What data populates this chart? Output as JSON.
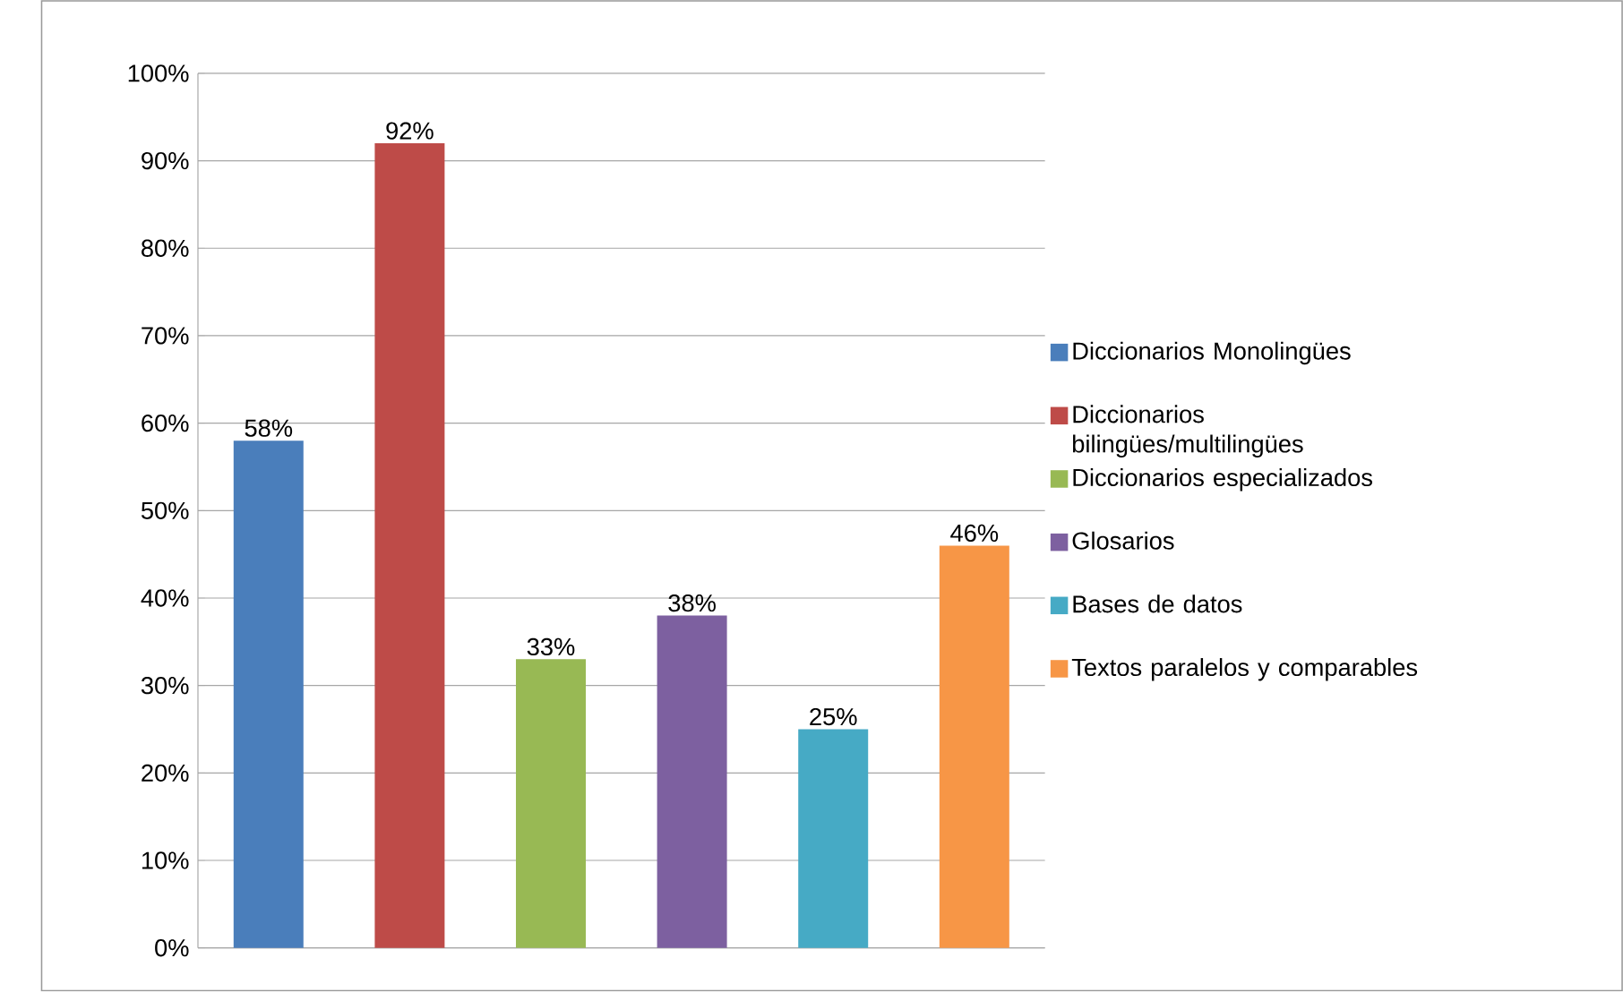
{
  "chart_data": {
    "type": "bar",
    "categories": [
      null,
      null,
      null,
      null,
      null,
      null
    ],
    "series": [
      {
        "name": "Diccionarios Monolingües",
        "color": "#4a7ebb",
        "values": [
          58,
          null,
          null,
          null,
          null,
          null
        ],
        "value_labels": [
          "58%",
          null,
          null,
          null,
          null,
          null
        ]
      },
      {
        "name": "Diccionarios bilingües/multilingües",
        "color": "#be4b48",
        "values": [
          null,
          92,
          null,
          null,
          null,
          null
        ],
        "value_labels": [
          null,
          "92%",
          null,
          null,
          null,
          null
        ]
      },
      {
        "name": "Diccionarios especializados",
        "color": "#98b954",
        "values": [
          null,
          null,
          33,
          null,
          null,
          null
        ],
        "value_labels": [
          null,
          null,
          "33%",
          null,
          null,
          null
        ]
      },
      {
        "name": "Glosarios",
        "color": "#7d60a0",
        "values": [
          null,
          null,
          null,
          38,
          null,
          null
        ],
        "value_labels": [
          null,
          null,
          null,
          "38%",
          null,
          null
        ]
      },
      {
        "name": "Bases de datos",
        "color": "#46aac5",
        "values": [
          null,
          null,
          null,
          null,
          25,
          null
        ],
        "value_labels": [
          null,
          null,
          null,
          null,
          "25%",
          null
        ]
      },
      {
        "name": "Textos paralelos y comparables",
        "color": "#f79646",
        "values": [
          null,
          null,
          null,
          null,
          null,
          46
        ],
        "value_labels": [
          null,
          null,
          null,
          null,
          null,
          "46%"
        ]
      }
    ],
    "ylim": [
      0,
      100
    ],
    "yticks": [
      {
        "value": 0,
        "label": "0%"
      },
      {
        "value": 10,
        "label": "10%"
      },
      {
        "value": 20,
        "label": "20%"
      },
      {
        "value": 30,
        "label": "30%"
      },
      {
        "value": 40,
        "label": "40%"
      },
      {
        "value": 50,
        "label": "50%"
      },
      {
        "value": 60,
        "label": "60%"
      },
      {
        "value": 70,
        "label": "70%"
      },
      {
        "value": 80,
        "label": "80%"
      },
      {
        "value": 90,
        "label": "90%"
      },
      {
        "value": 100,
        "label": "100%"
      }
    ],
    "tick_labels": "y",
    "grid": "y",
    "legend": "right"
  }
}
